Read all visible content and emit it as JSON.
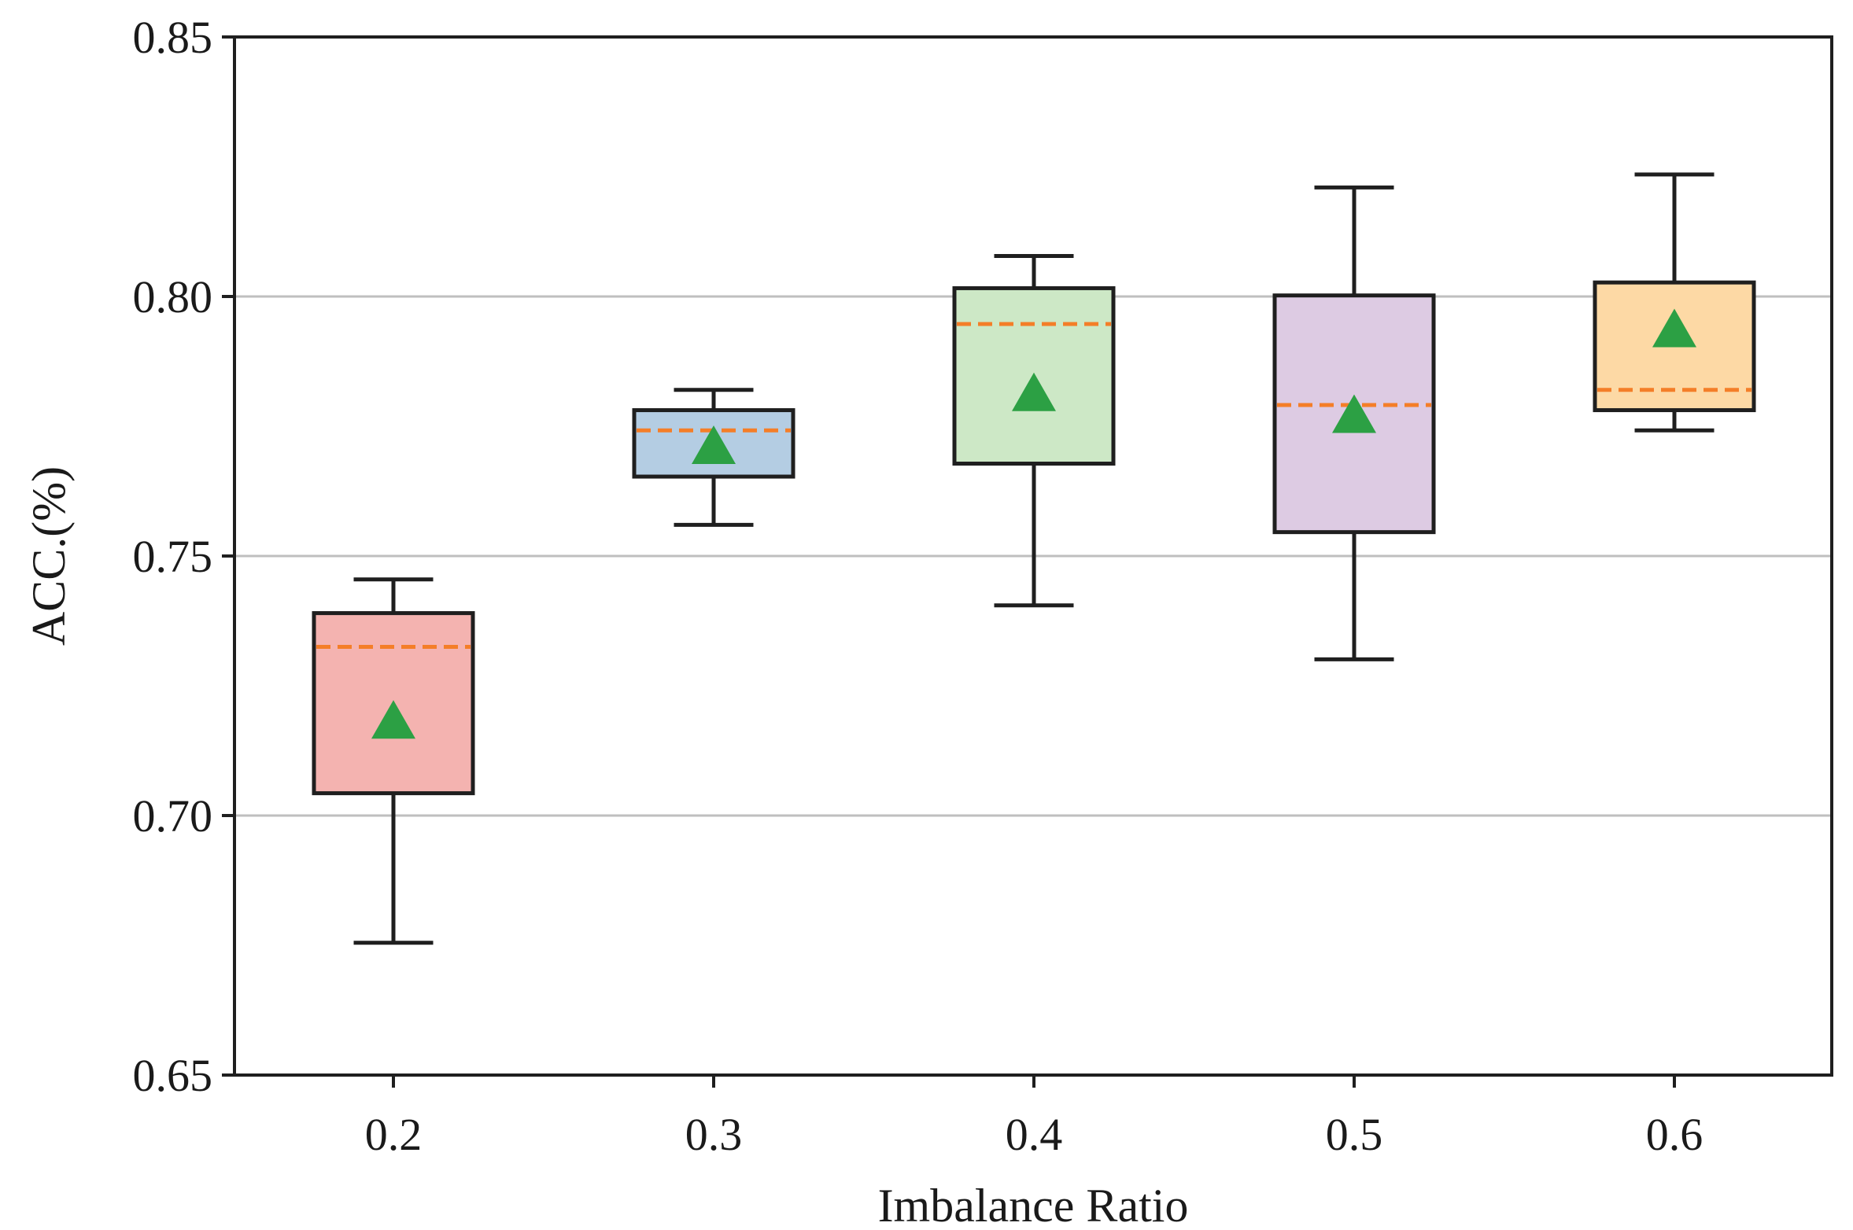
{
  "chart_data": {
    "type": "box",
    "title": "",
    "xlabel": "Imbalance Ratio",
    "ylabel": "ACC.(%)",
    "ylim": [
      0.65,
      0.85
    ],
    "yticks": [
      "0.65",
      "0.70",
      "0.75",
      "0.80",
      "0.85"
    ],
    "ytick_values": [
      0.65,
      0.7,
      0.75,
      0.8,
      0.85
    ],
    "grid": "horizontal",
    "categories": [
      "0.2",
      "0.3",
      "0.4",
      "0.5",
      "0.6"
    ],
    "boxes": [
      {
        "category": "0.2",
        "whisker_low": 0.6755,
        "q1": 0.7043,
        "median": 0.7325,
        "q3": 0.739,
        "whisker_high": 0.7455,
        "mean": 0.718,
        "color": "#f4b3b0"
      },
      {
        "category": "0.3",
        "whisker_low": 0.756,
        "q1": 0.7653,
        "median": 0.7742,
        "q3": 0.7781,
        "whisker_high": 0.782,
        "mean": 0.7709,
        "color": "#b4cde3"
      },
      {
        "category": "0.4",
        "whisker_low": 0.7405,
        "q1": 0.7678,
        "median": 0.7947,
        "q3": 0.8016,
        "whisker_high": 0.8078,
        "mean": 0.7811,
        "color": "#cde8c6"
      },
      {
        "category": "0.5",
        "whisker_low": 0.7301,
        "q1": 0.7546,
        "median": 0.7791,
        "q3": 0.8002,
        "whisker_high": 0.821,
        "mean": 0.7769,
        "color": "#ddcbe3"
      },
      {
        "category": "0.6",
        "whisker_low": 0.7742,
        "q1": 0.7781,
        "median": 0.782,
        "q3": 0.8027,
        "whisker_high": 0.8235,
        "mean": 0.7934,
        "color": "#fdd9a5"
      }
    ],
    "median_color": "#f47e28",
    "mean_color": "#2ca044",
    "edge_color": "#1f1f1f",
    "grid_color": "#bfbfbf"
  }
}
